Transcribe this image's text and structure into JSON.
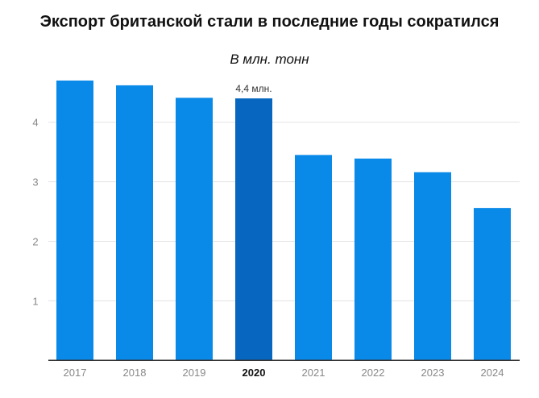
{
  "chart_data": {
    "type": "bar",
    "title": "Экспорт британской стали в последние годы сократился",
    "subtitle": "В млн. тонн",
    "categories": [
      "2017",
      "2018",
      "2019",
      "2020",
      "2021",
      "2022",
      "2023",
      "2024"
    ],
    "values": [
      4.7,
      4.62,
      4.41,
      4.4,
      3.45,
      3.39,
      3.16,
      2.56
    ],
    "highlight_category": "2020",
    "annotation": {
      "category": "2020",
      "text": "4,4 млн."
    },
    "yticks": [
      1,
      2,
      3,
      4
    ],
    "ylim": [
      0,
      4.8
    ],
    "grid": true,
    "colors": {
      "bar": "#0a8ae8",
      "highlight": "#0766bf",
      "axis": "#333333",
      "grid": "#e3e3e3",
      "tick_label": "#888888"
    }
  }
}
